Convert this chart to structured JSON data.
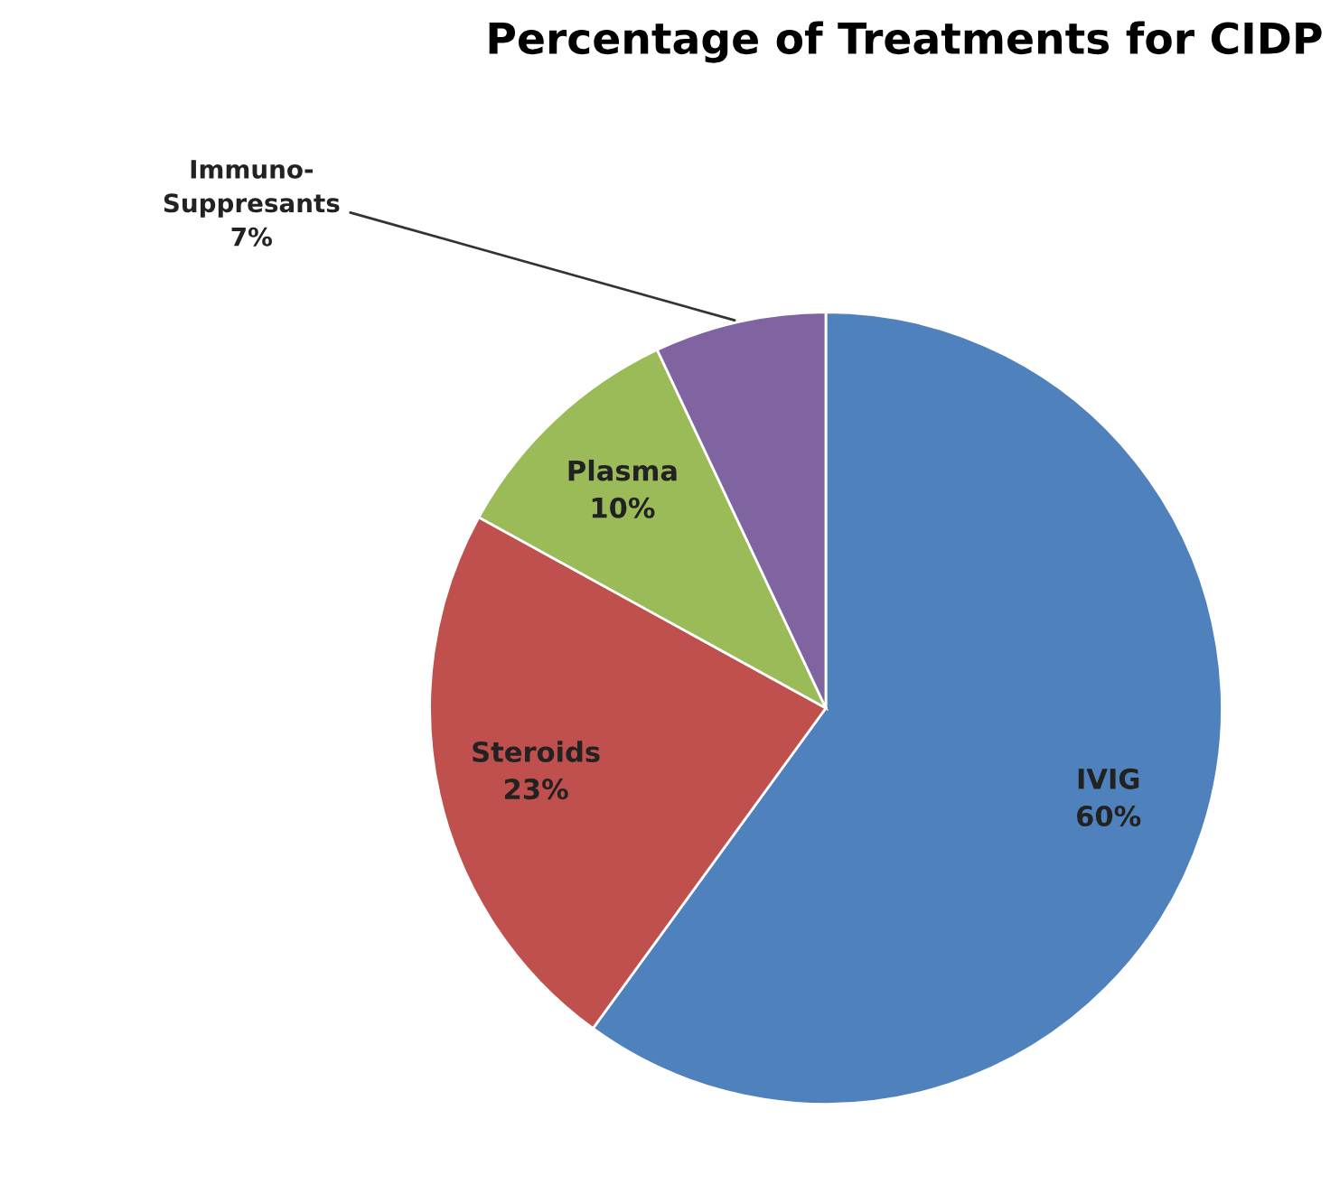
{
  "chart_data": {
    "type": "pie",
    "title": "Percentage of Treatments for CIDP",
    "categories": [
      "IVIG",
      "Steroids",
      "Plasma",
      "Immuno-\nSuppresants"
    ],
    "values": [
      60,
      23,
      10,
      7
    ],
    "value_labels": [
      "60%",
      "23%",
      "10%",
      "7%"
    ],
    "colors": [
      "#4f81bd",
      "#c0504d",
      "#9bbb59",
      "#8064a2"
    ],
    "legend": false
  }
}
